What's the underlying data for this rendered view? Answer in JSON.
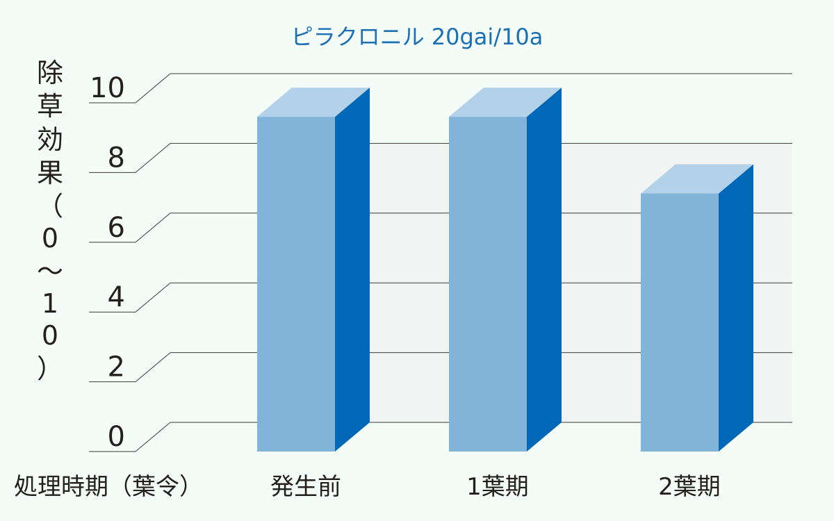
{
  "chart_data": {
    "type": "bar",
    "title": "ピラクロニル 20gai/10a",
    "ylabel": "除草効果（0〜10）",
    "xlabel": "処理時期（葉令）",
    "categories": [
      "発生前",
      "1葉期",
      "2葉期"
    ],
    "values": [
      9.6,
      9.6,
      7.4
    ],
    "ylim": [
      0,
      10
    ],
    "yticks": [
      0,
      2,
      4,
      6,
      8,
      10
    ],
    "grid": true,
    "legend": "none",
    "colors": {
      "bar_front": "#82b4da",
      "bar_top": "#b3d2ea",
      "bar_side": "#0068b6",
      "back_wall": "#f1f4f2",
      "gridline": "#3a3a3a",
      "title": "#1a6fb5"
    }
  }
}
